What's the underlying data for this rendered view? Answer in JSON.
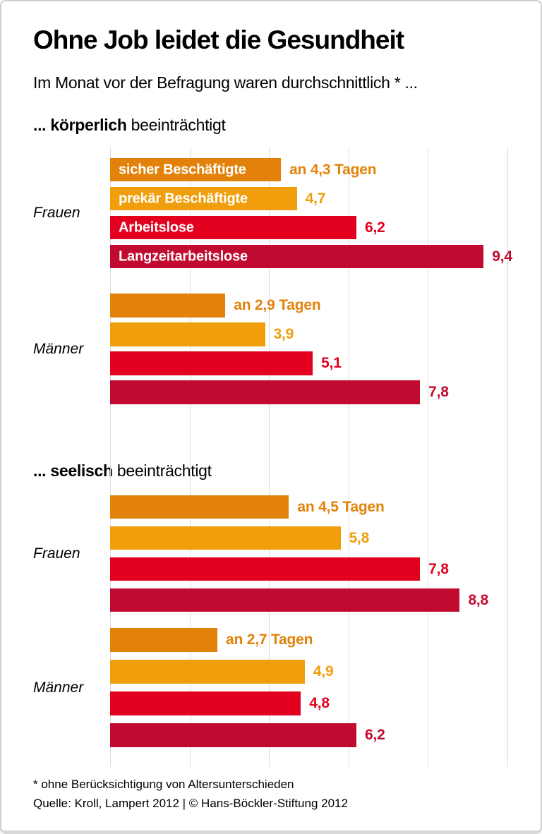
{
  "page": {
    "title": "Ohne Job leidet die Gesundheit",
    "subtitle": "Im Monat vor der Befragung waren durchschnittlich * ...",
    "footnote": "* ohne Berücksichtigung von Altersunterschieden",
    "source": "Quelle: Kroll, Lampert 2012 | © Hans-Böckler-Stiftung 2012"
  },
  "chart_data": {
    "type": "bar",
    "orientation": "horizontal",
    "unit": "Tage",
    "xlim": [
      0,
      10
    ],
    "gridline_step": 2,
    "grid": true,
    "categories": [
      "sicher Beschäftigte",
      "prekär Beschäftigte",
      "Arbeitslose",
      "Langzeitarbeitslose"
    ],
    "colors": [
      "#e2820a",
      "#f09e0c",
      "#e2001e",
      "#c10a30"
    ],
    "gridline_color": "#dcdcdc",
    "sections": [
      {
        "heading_bold": "... körperlich",
        "heading_rest": " beeinträchtigt",
        "groups": [
          {
            "label": "Frauen",
            "values": [
              4.3,
              4.7,
              6.2,
              9.4
            ],
            "value_labels": [
              "an 4,3 Tagen",
              "4,7",
              "6,2",
              "9,4"
            ],
            "show_category_labels": true
          },
          {
            "label": "Männer",
            "values": [
              2.9,
              3.9,
              5.1,
              7.8
            ],
            "value_labels": [
              "an 2,9 Tagen",
              "3,9",
              "5,1",
              "7,8"
            ],
            "show_category_labels": false
          }
        ]
      },
      {
        "heading_bold": "... seelisch",
        "heading_rest": " beeinträchtigt",
        "groups": [
          {
            "label": "Frauen",
            "values": [
              4.5,
              5.8,
              7.8,
              8.8
            ],
            "value_labels": [
              "an 4,5 Tagen",
              "5,8",
              "7,8",
              "8,8"
            ],
            "show_category_labels": false
          },
          {
            "label": "Männer",
            "values": [
              2.7,
              4.9,
              4.8,
              6.2
            ],
            "value_labels": [
              "an 2,7 Tagen",
              "4,9",
              "4,8",
              "6,2"
            ],
            "show_category_labels": false
          }
        ]
      }
    ]
  }
}
